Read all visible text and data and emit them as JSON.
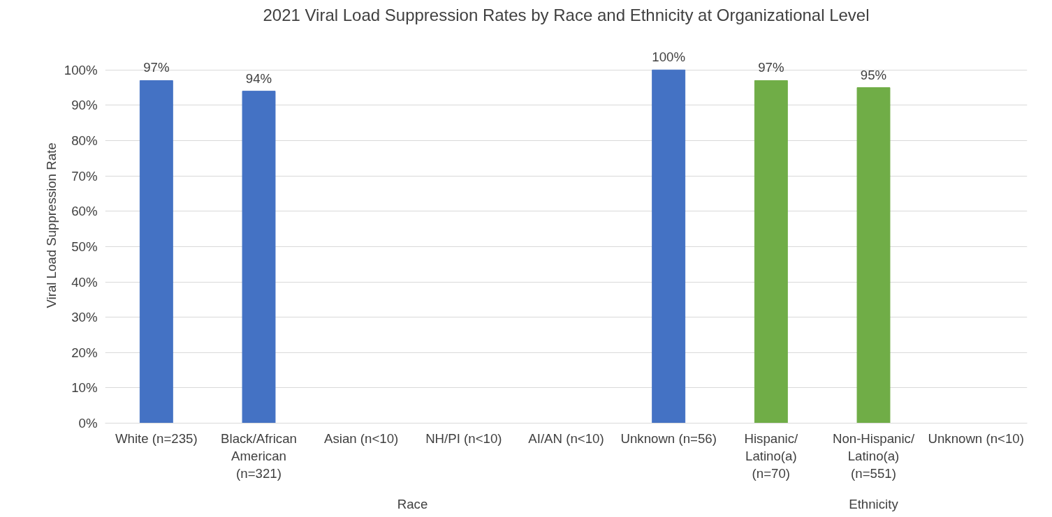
{
  "chart_data": {
    "type": "bar",
    "title": "2021 Viral Load Suppression Rates by Race and Ethnicity at Organizational Level",
    "ylabel": "Viral Load Suppression Rate",
    "categories": [
      "White (n=235)",
      "Black/African American (n=321)",
      "Asian (n<10)",
      "NH/PI (n<10)",
      "AI/AN (n<10)",
      "Unknown (n=56)",
      "Hispanic/ Latino(a) (n=70)",
      "Non-Hispanic/ Latino(a) (n=551)",
      "Unknown (n<10)"
    ],
    "values": [
      97,
      94,
      null,
      null,
      null,
      100,
      97,
      95,
      null
    ],
    "colors": [
      "#4472c4",
      "#4472c4",
      "#4472c4",
      "#4472c4",
      "#4472c4",
      "#4472c4",
      "#70ad47",
      "#70ad47",
      "#70ad47"
    ],
    "value_labels": [
      "97%",
      "94%",
      null,
      null,
      null,
      "100%",
      "97%",
      "95%",
      null
    ],
    "ylim": [
      0,
      100
    ],
    "yticks": [
      {
        "value": 0,
        "label": "0%"
      },
      {
        "value": 10,
        "label": "10%"
      },
      {
        "value": 20,
        "label": "20%"
      },
      {
        "value": 30,
        "label": "30%"
      },
      {
        "value": 40,
        "label": "40%"
      },
      {
        "value": 50,
        "label": "50%"
      },
      {
        "value": 60,
        "label": "60%"
      },
      {
        "value": 70,
        "label": "70%"
      },
      {
        "value": 80,
        "label": "80%"
      },
      {
        "value": 90,
        "label": "90%"
      },
      {
        "value": 100,
        "label": "100%"
      }
    ],
    "annotations": [
      "Race",
      "Ethnicity"
    ],
    "grid": "y"
  }
}
